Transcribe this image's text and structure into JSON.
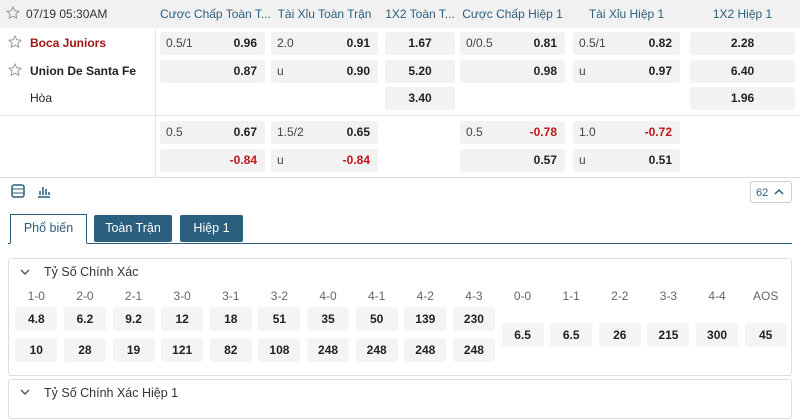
{
  "header": {
    "datetime": "07/19 05:30AM",
    "columns": [
      "Cược Chấp Toàn T...",
      "Tài Xỉu Toàn Trận",
      "1X2 Toàn T...",
      "Cược Chấp Hiệp 1",
      "Tài Xỉu Hiệp 1",
      "1X2 Hiệp 1"
    ]
  },
  "teams": [
    "Boca Juniors",
    "Union De Santa Fe",
    "Hòa"
  ],
  "main_odds": {
    "rows": [
      [
        [
          "0.5/1",
          "0.96"
        ],
        [
          "2.0",
          "0.91"
        ],
        "1.67",
        [
          "0/0.5",
          "0.81"
        ],
        [
          "0.5/1",
          "0.82"
        ],
        "2.28"
      ],
      [
        [
          null,
          "0.87"
        ],
        [
          "u",
          "0.90"
        ],
        "5.20",
        [
          null,
          "0.98"
        ],
        [
          "u",
          "0.97"
        ],
        "6.40"
      ],
      [
        null,
        null,
        "3.40",
        null,
        null,
        "1.96"
      ]
    ]
  },
  "extra_odds": {
    "rows": [
      [
        [
          "0.5",
          "0.67"
        ],
        [
          "1.5/2",
          "0.65"
        ],
        null,
        [
          "0.5",
          "-0.78"
        ],
        [
          "1.0",
          "-0.72"
        ],
        null
      ],
      [
        [
          null,
          "-0.84"
        ],
        [
          "u",
          "-0.84"
        ],
        null,
        [
          null,
          "0.57"
        ],
        [
          "u",
          "0.51"
        ],
        null
      ]
    ]
  },
  "market_count": "62",
  "tabs": [
    "Phổ biến",
    "Toàn Trận",
    "Hiệp 1"
  ],
  "exact_score": {
    "title": "Tỷ Số Chính Xác",
    "columns": [
      {
        "score": "1-0",
        "odds": [
          "4.8",
          "10"
        ]
      },
      {
        "score": "2-0",
        "odds": [
          "6.2",
          "28"
        ]
      },
      {
        "score": "2-1",
        "odds": [
          "9.2",
          "19"
        ]
      },
      {
        "score": "3-0",
        "odds": [
          "12",
          "121"
        ]
      },
      {
        "score": "3-1",
        "odds": [
          "18",
          "82"
        ]
      },
      {
        "score": "3-2",
        "odds": [
          "51",
          "108"
        ]
      },
      {
        "score": "4-0",
        "odds": [
          "35",
          "248"
        ]
      },
      {
        "score": "4-1",
        "odds": [
          "50",
          "248"
        ]
      },
      {
        "score": "4-2",
        "odds": [
          "139",
          "248"
        ]
      },
      {
        "score": "4-3",
        "odds": [
          "230",
          "248"
        ]
      },
      {
        "score": "0-0",
        "odds": [
          "6.5"
        ]
      },
      {
        "score": "1-1",
        "odds": [
          "6.5"
        ]
      },
      {
        "score": "2-2",
        "odds": [
          "26"
        ]
      },
      {
        "score": "3-3",
        "odds": [
          "215"
        ]
      },
      {
        "score": "4-4",
        "odds": [
          "300"
        ]
      },
      {
        "score": "AOS",
        "odds": [
          "45"
        ]
      }
    ]
  },
  "exact_score_half": {
    "title": "Tỷ Số Chính Xác Hiệp 1"
  }
}
